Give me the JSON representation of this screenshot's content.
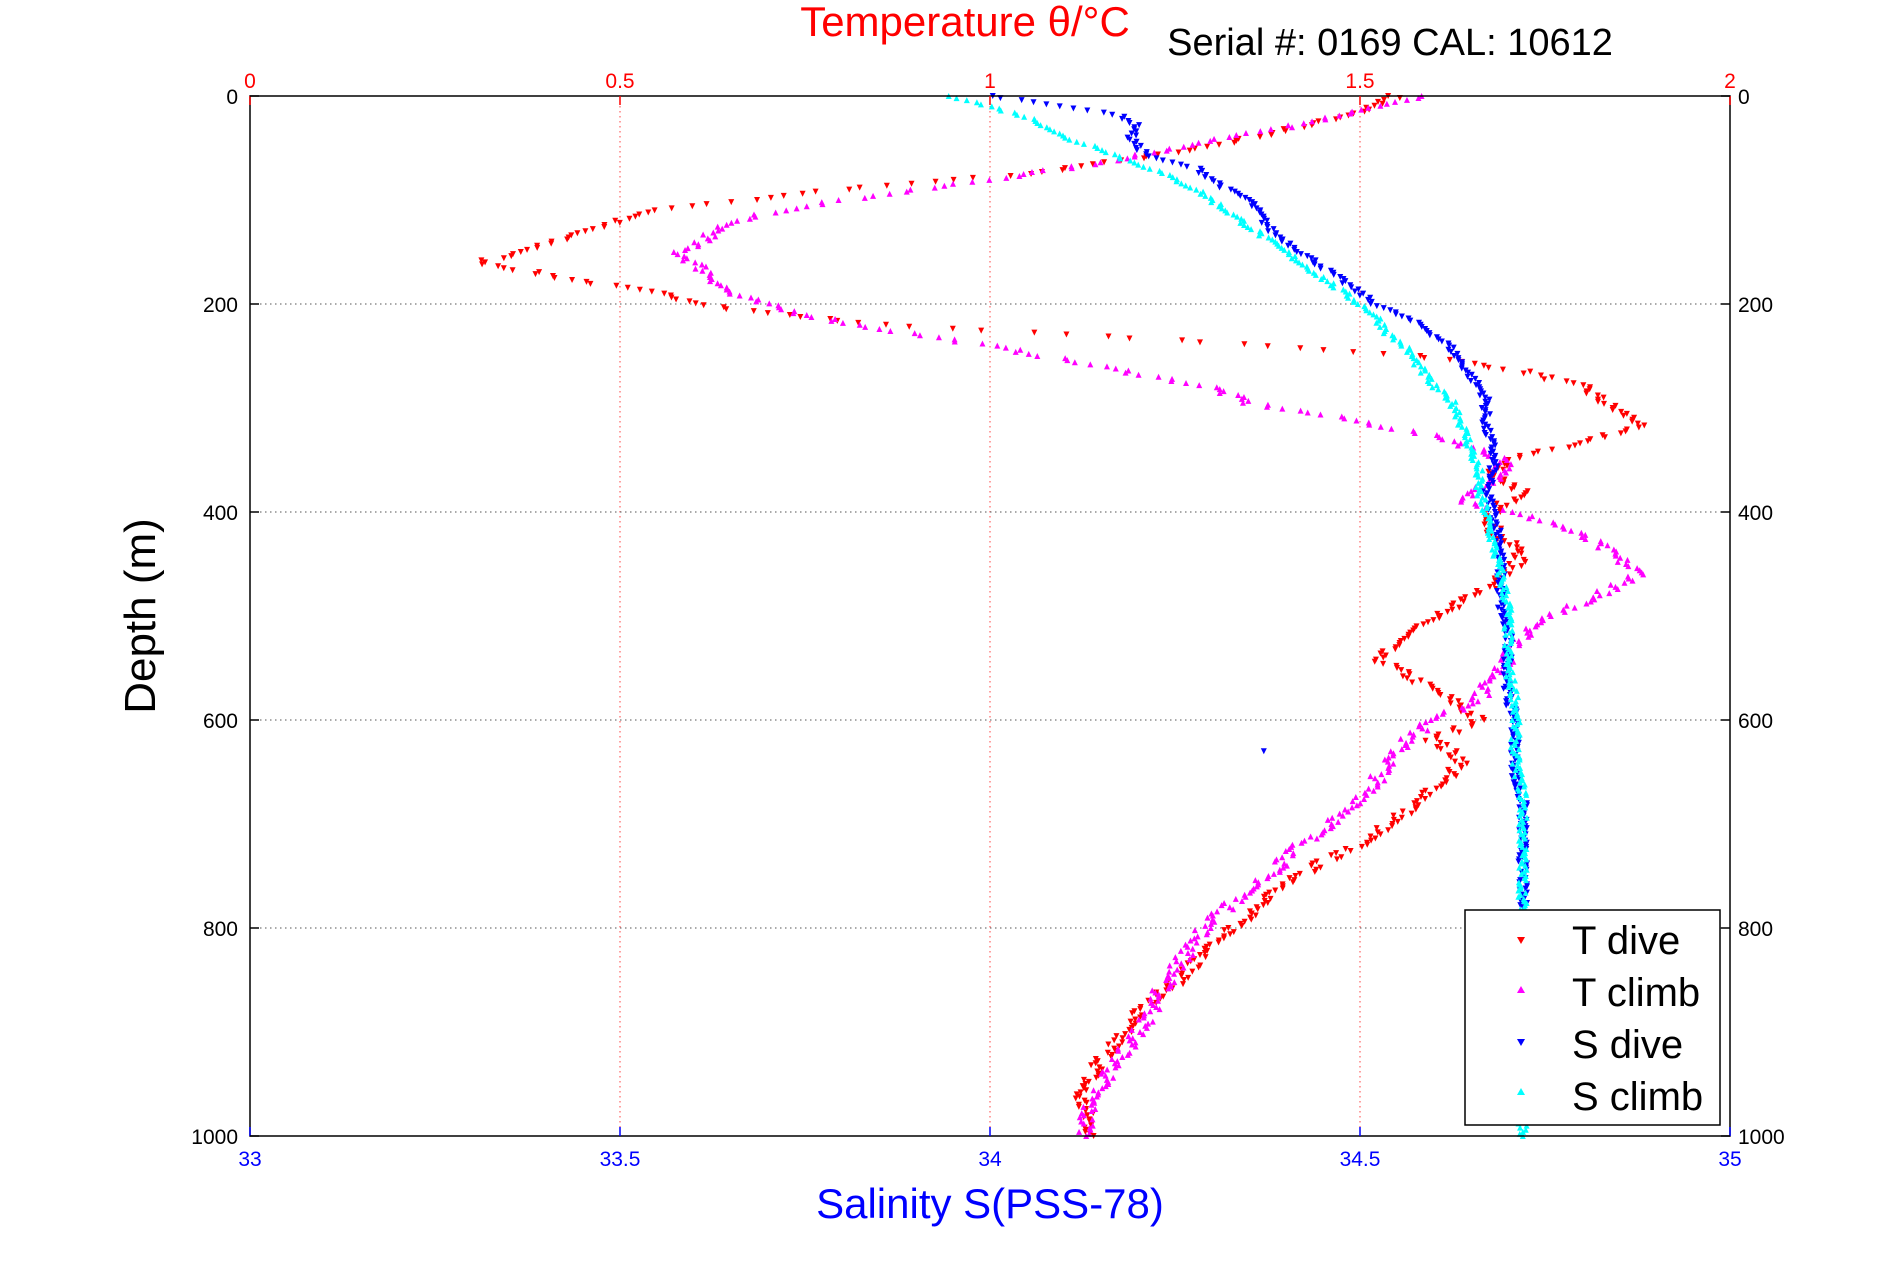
{
  "chart_data": {
    "type": "scatter",
    "title": "Temperature θ/°C",
    "subtitle": "Serial #: 0169 CAL: 10612",
    "xlabel_bottom": "Salinity S(PSS-78)",
    "xlabel_top": "Temperature θ/°C",
    "ylabel": "Depth (m)",
    "x_bottom": {
      "label": "Salinity S(PSS-78)",
      "lim": [
        33,
        35
      ],
      "ticks": [
        33,
        33.5,
        34,
        34.5,
        35
      ],
      "tick_labels": [
        "33",
        "33.5",
        "34",
        "34.5",
        "35"
      ]
    },
    "x_top": {
      "label": "Temperature θ/°C",
      "lim": [
        0,
        2
      ],
      "ticks": [
        0,
        0.5,
        1,
        1.5,
        2
      ],
      "tick_labels": [
        "0",
        "0.5",
        "1",
        "1.5",
        "2"
      ]
    },
    "y": {
      "label": "Depth (m)",
      "lim": [
        0,
        1000
      ],
      "reversed": true,
      "ticks": [
        0,
        200,
        400,
        600,
        800,
        1000
      ],
      "tick_labels": [
        "0",
        "200",
        "400",
        "600",
        "800",
        "1000"
      ]
    },
    "grid": true,
    "legend": {
      "position": "bottom-right",
      "entries": [
        "T dive",
        "T climb",
        "S dive",
        "S climb"
      ]
    },
    "colors": {
      "t_axis": "#ff0000",
      "s_axis": "#0000ff",
      "grid_t": "#ff4040",
      "grid_depth": "#555555",
      "frame": "#000000"
    },
    "series": [
      {
        "name": "T dive",
        "axis": "temperature",
        "marker": "triangle-down",
        "color": "#ff0000",
        "depth": [
          0,
          15,
          30,
          45,
          60,
          75,
          90,
          110,
          130,
          150,
          160,
          175,
          190,
          205,
          220,
          235,
          250,
          265,
          280,
          300,
          315,
          330,
          350,
          365,
          380,
          400,
          420,
          440,
          460,
          480,
          500,
          520,
          540,
          560,
          580,
          600,
          620,
          640,
          660,
          680,
          700,
          720,
          740,
          760,
          780,
          800,
          820,
          840,
          860,
          880,
          900,
          920,
          940,
          960,
          980,
          1000
        ],
        "value": [
          1.55,
          1.5,
          1.42,
          1.32,
          1.2,
          1.05,
          0.8,
          0.55,
          0.45,
          0.37,
          0.31,
          0.42,
          0.55,
          0.65,
          0.85,
          1.25,
          1.58,
          1.72,
          1.8,
          1.84,
          1.88,
          1.82,
          1.7,
          1.68,
          1.72,
          1.68,
          1.68,
          1.72,
          1.7,
          1.66,
          1.6,
          1.56,
          1.52,
          1.57,
          1.62,
          1.66,
          1.6,
          1.64,
          1.61,
          1.58,
          1.54,
          1.5,
          1.44,
          1.4,
          1.36,
          1.33,
          1.3,
          1.27,
          1.24,
          1.2,
          1.18,
          1.16,
          1.14,
          1.12,
          1.13,
          1.14
        ]
      },
      {
        "name": "T climb",
        "axis": "temperature",
        "marker": "triangle-up",
        "color": "#ff00ff",
        "depth": [
          0,
          15,
          30,
          45,
          60,
          75,
          90,
          100,
          110,
          120,
          135,
          150,
          170,
          190,
          205,
          220,
          240,
          260,
          280,
          295,
          310,
          330,
          350,
          370,
          390,
          410,
          430,
          450,
          460,
          480,
          500,
          520,
          540,
          560,
          580,
          600,
          620,
          640,
          660,
          680,
          700,
          720,
          740,
          760,
          780,
          800,
          820,
          840,
          860,
          880,
          900,
          920,
          940,
          960,
          980,
          1000
        ],
        "value": [
          1.58,
          1.5,
          1.4,
          1.28,
          1.18,
          1.05,
          0.9,
          0.8,
          0.72,
          0.65,
          0.62,
          0.58,
          0.62,
          0.65,
          0.72,
          0.82,
          1.0,
          1.15,
          1.3,
          1.35,
          1.48,
          1.62,
          1.7,
          1.68,
          1.64,
          1.76,
          1.82,
          1.86,
          1.88,
          1.82,
          1.76,
          1.72,
          1.7,
          1.68,
          1.66,
          1.6,
          1.56,
          1.54,
          1.52,
          1.5,
          1.46,
          1.42,
          1.39,
          1.36,
          1.32,
          1.29,
          1.27,
          1.25,
          1.23,
          1.22,
          1.2,
          1.18,
          1.16,
          1.14,
          1.13,
          1.13
        ]
      },
      {
        "name": "S dive",
        "axis": "salinity",
        "marker": "triangle-down",
        "color": "#0000ff",
        "depth": [
          0,
          10,
          20,
          30,
          40,
          50,
          60,
          70,
          80,
          90,
          100,
          110,
          120,
          130,
          140,
          150,
          160,
          170,
          180,
          190,
          200,
          210,
          220,
          230,
          240,
          250,
          260,
          270,
          280,
          290,
          300,
          320,
          340,
          360,
          380,
          400,
          430,
          460,
          490,
          520,
          550,
          580,
          600,
          620,
          640,
          660,
          680,
          700,
          720,
          740,
          760,
          780
        ],
        "value": [
          34.0,
          34.1,
          34.18,
          34.2,
          34.19,
          34.2,
          34.22,
          34.28,
          34.3,
          34.32,
          34.35,
          34.36,
          34.37,
          34.38,
          34.4,
          34.42,
          34.44,
          34.46,
          34.48,
          34.5,
          34.52,
          34.55,
          34.58,
          34.6,
          34.62,
          34.63,
          34.64,
          34.65,
          34.66,
          34.67,
          34.67,
          34.67,
          34.68,
          34.68,
          34.67,
          34.68,
          34.69,
          34.69,
          34.69,
          34.7,
          34.7,
          34.7,
          34.71,
          34.71,
          34.71,
          34.71,
          34.72,
          34.72,
          34.72,
          34.72,
          34.72,
          34.72
        ]
      },
      {
        "name": "S climb",
        "axis": "salinity",
        "marker": "triangle-up",
        "color": "#00ffff",
        "depth": [
          0,
          10,
          20,
          30,
          40,
          50,
          60,
          70,
          80,
          90,
          100,
          110,
          120,
          130,
          140,
          150,
          160,
          170,
          180,
          190,
          200,
          210,
          220,
          230,
          240,
          250,
          260,
          270,
          280,
          290,
          300,
          320,
          340,
          360,
          380,
          400,
          430,
          460,
          490,
          520,
          550,
          580,
          610,
          640,
          670,
          700,
          740,
          780,
          820,
          860,
          900,
          940,
          980,
          1000
        ],
        "value": [
          33.95,
          34.0,
          34.05,
          34.08,
          34.1,
          34.15,
          34.18,
          34.22,
          34.25,
          34.28,
          34.3,
          34.32,
          34.34,
          34.36,
          34.38,
          34.4,
          34.42,
          34.44,
          34.46,
          34.48,
          34.5,
          34.52,
          34.53,
          34.54,
          34.56,
          34.57,
          34.58,
          34.59,
          34.6,
          34.62,
          34.63,
          34.64,
          34.65,
          34.66,
          34.66,
          34.67,
          34.68,
          34.69,
          34.7,
          34.7,
          34.7,
          34.71,
          34.71,
          34.71,
          34.72,
          34.72,
          34.72,
          34.72,
          34.72,
          34.72,
          34.72,
          34.72,
          34.72,
          34.72
        ]
      }
    ],
    "outliers": [
      {
        "series": "S dive",
        "depth": 630,
        "value": 34.37
      }
    ]
  }
}
